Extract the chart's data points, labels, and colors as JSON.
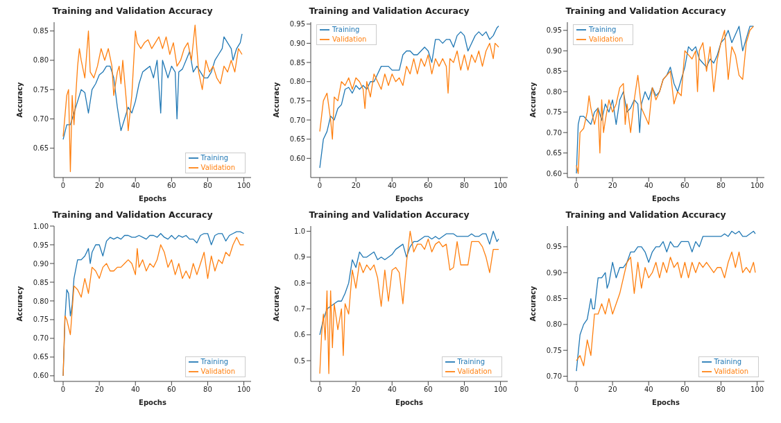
{
  "chart_data": [
    {
      "type": "line",
      "title": "Training and Validation Accuracy",
      "xlabel": "Epochs",
      "ylabel": "Accuracy",
      "legend": "bottom right",
      "xlim": [
        -5,
        104
      ],
      "xticks": [
        0,
        20,
        40,
        60,
        80,
        100
      ],
      "ylim": [
        0.6,
        0.865
      ],
      "yticks": [
        {
          "value": 0.65,
          "label": "0.65"
        },
        {
          "value": 0.7,
          "label": "0.70"
        },
        {
          "value": 0.75,
          "label": "0.75"
        },
        {
          "value": 0.8,
          "label": "0.80"
        },
        {
          "value": 0.85,
          "label": "0.85"
        }
      ],
      "series": [
        {
          "name": "Training",
          "color": "#1f77b4",
          "x": [
            0,
            2,
            4,
            6,
            8,
            10,
            12,
            14,
            16,
            18,
            20,
            22,
            24,
            26,
            28,
            30,
            32,
            34,
            36,
            38,
            40,
            42,
            44,
            46,
            48,
            50,
            52,
            54,
            55,
            58,
            60,
            62,
            63,
            64,
            66,
            68,
            70,
            72,
            74,
            76,
            78,
            80,
            82,
            84,
            86,
            88,
            89,
            91,
            93,
            94,
            96,
            98,
            99
          ],
          "values": [
            0.665,
            0.69,
            0.69,
            0.71,
            0.73,
            0.75,
            0.745,
            0.71,
            0.75,
            0.76,
            0.775,
            0.78,
            0.79,
            0.79,
            0.77,
            0.72,
            0.68,
            0.7,
            0.72,
            0.71,
            0.73,
            0.76,
            0.78,
            0.785,
            0.79,
            0.77,
            0.8,
            0.71,
            0.8,
            0.77,
            0.79,
            0.78,
            0.7,
            0.78,
            0.785,
            0.8,
            0.815,
            0.78,
            0.79,
            0.78,
            0.77,
            0.77,
            0.78,
            0.8,
            0.81,
            0.82,
            0.84,
            0.83,
            0.82,
            0.8,
            0.82,
            0.83,
            0.845
          ]
        },
        {
          "name": "Validation",
          "color": "#ff7f0e",
          "x": [
            0,
            2,
            3,
            4,
            5,
            6,
            8,
            9,
            10,
            12,
            14,
            15,
            17,
            19,
            21,
            23,
            25,
            27,
            28,
            30,
            31,
            32,
            33,
            35,
            36,
            38,
            40,
            41,
            43,
            45,
            47,
            49,
            51,
            53,
            55,
            57,
            59,
            61,
            63,
            65,
            67,
            69,
            71,
            73,
            75,
            77,
            79,
            81,
            83,
            85,
            87,
            89,
            91,
            93,
            95,
            97,
            99
          ],
          "values": [
            0.67,
            0.74,
            0.75,
            0.61,
            0.74,
            0.69,
            0.79,
            0.82,
            0.8,
            0.77,
            0.85,
            0.78,
            0.77,
            0.79,
            0.82,
            0.8,
            0.82,
            0.79,
            0.74,
            0.78,
            0.79,
            0.76,
            0.8,
            0.73,
            0.68,
            0.74,
            0.85,
            0.83,
            0.82,
            0.83,
            0.835,
            0.82,
            0.83,
            0.84,
            0.82,
            0.84,
            0.81,
            0.83,
            0.79,
            0.8,
            0.82,
            0.83,
            0.8,
            0.86,
            0.78,
            0.75,
            0.8,
            0.78,
            0.79,
            0.77,
            0.76,
            0.79,
            0.78,
            0.8,
            0.78,
            0.82,
            0.81
          ]
        }
      ]
    },
    {
      "type": "line",
      "title": "Training and Validation Accuracy",
      "xlabel": "Epochs",
      "ylabel": "Accuracy",
      "legend": "top left",
      "xlim": [
        -5,
        104
      ],
      "xticks": [
        0,
        20,
        40,
        60,
        80,
        100
      ],
      "ylim": [
        0.55,
        0.955
      ],
      "yticks": [
        {
          "value": 0.6,
          "label": "0.60"
        },
        {
          "value": 0.65,
          "label": "0.65"
        },
        {
          "value": 0.7,
          "label": "0.70"
        },
        {
          "value": 0.75,
          "label": "0.75"
        },
        {
          "value": 0.8,
          "label": "0.80"
        },
        {
          "value": 0.85,
          "label": "0.85"
        },
        {
          "value": 0.9,
          "label": "0.90"
        },
        {
          "value": 0.95,
          "label": "0.95"
        }
      ],
      "series": [
        {
          "name": "Training",
          "color": "#1f77b4",
          "x": [
            0,
            2,
            4,
            6,
            8,
            10,
            12,
            14,
            16,
            18,
            20,
            22,
            24,
            26,
            28,
            30,
            32,
            34,
            36,
            38,
            40,
            42,
            44,
            46,
            48,
            50,
            52,
            54,
            56,
            58,
            60,
            62,
            64,
            66,
            68,
            70,
            72,
            74,
            76,
            78,
            80,
            82,
            84,
            86,
            88,
            90,
            92,
            94,
            96,
            98,
            99
          ],
          "values": [
            0.575,
            0.65,
            0.67,
            0.71,
            0.7,
            0.73,
            0.74,
            0.78,
            0.785,
            0.77,
            0.79,
            0.78,
            0.79,
            0.78,
            0.8,
            0.8,
            0.82,
            0.84,
            0.84,
            0.84,
            0.83,
            0.83,
            0.83,
            0.87,
            0.88,
            0.88,
            0.87,
            0.87,
            0.88,
            0.89,
            0.88,
            0.85,
            0.91,
            0.91,
            0.9,
            0.91,
            0.91,
            0.89,
            0.92,
            0.93,
            0.92,
            0.88,
            0.9,
            0.92,
            0.93,
            0.92,
            0.93,
            0.91,
            0.92,
            0.94,
            0.945
          ]
        },
        {
          "name": "Validation",
          "color": "#ff7f0e",
          "x": [
            0,
            2,
            4,
            6,
            7,
            8,
            10,
            12,
            14,
            16,
            18,
            20,
            22,
            24,
            25,
            26,
            28,
            30,
            32,
            34,
            36,
            38,
            40,
            42,
            44,
            46,
            48,
            50,
            52,
            54,
            56,
            58,
            60,
            62,
            64,
            66,
            68,
            70,
            71,
            72,
            74,
            76,
            78,
            80,
            82,
            84,
            86,
            88,
            90,
            92,
            94,
            96,
            97,
            99
          ],
          "values": [
            0.67,
            0.75,
            0.77,
            0.7,
            0.65,
            0.76,
            0.75,
            0.8,
            0.79,
            0.81,
            0.78,
            0.81,
            0.8,
            0.78,
            0.73,
            0.8,
            0.76,
            0.82,
            0.8,
            0.78,
            0.82,
            0.79,
            0.82,
            0.8,
            0.81,
            0.79,
            0.84,
            0.82,
            0.86,
            0.82,
            0.86,
            0.84,
            0.87,
            0.82,
            0.86,
            0.84,
            0.86,
            0.84,
            0.77,
            0.86,
            0.85,
            0.88,
            0.83,
            0.87,
            0.83,
            0.87,
            0.85,
            0.88,
            0.84,
            0.88,
            0.9,
            0.86,
            0.9,
            0.89
          ]
        }
      ]
    },
    {
      "type": "line",
      "title": "Training and Validation Accuracy",
      "xlabel": "Epochs",
      "ylabel": "Accuracy",
      "legend": "top left",
      "xlim": [
        -5,
        104
      ],
      "xticks": [
        0,
        20,
        40,
        60,
        80,
        100
      ],
      "ylim": [
        0.59,
        0.97
      ],
      "yticks": [
        {
          "value": 0.6,
          "label": "0.60"
        },
        {
          "value": 0.65,
          "label": "0.65"
        },
        {
          "value": 0.7,
          "label": "0.70"
        },
        {
          "value": 0.75,
          "label": "0.75"
        },
        {
          "value": 0.8,
          "label": "0.80"
        },
        {
          "value": 0.85,
          "label": "0.85"
        },
        {
          "value": 0.9,
          "label": "0.90"
        },
        {
          "value": 0.95,
          "label": "0.95"
        }
      ],
      "series": [
        {
          "name": "Training",
          "color": "#1f77b4",
          "x": [
            0,
            1,
            2,
            4,
            6,
            8,
            10,
            12,
            14,
            16,
            18,
            20,
            22,
            24,
            26,
            28,
            30,
            32,
            34,
            35,
            36,
            38,
            40,
            42,
            44,
            46,
            48,
            50,
            52,
            54,
            56,
            58,
            60,
            62,
            64,
            66,
            68,
            70,
            72,
            74,
            76,
            78,
            80,
            82,
            84,
            86,
            88,
            90,
            92,
            94,
            96,
            98
          ],
          "values": [
            0.6,
            0.72,
            0.74,
            0.74,
            0.73,
            0.72,
            0.75,
            0.76,
            0.73,
            0.77,
            0.75,
            0.78,
            0.72,
            0.78,
            0.8,
            0.75,
            0.76,
            0.78,
            0.77,
            0.7,
            0.77,
            0.8,
            0.78,
            0.81,
            0.79,
            0.8,
            0.83,
            0.84,
            0.86,
            0.82,
            0.8,
            0.83,
            0.86,
            0.91,
            0.9,
            0.91,
            0.88,
            0.87,
            0.86,
            0.88,
            0.87,
            0.89,
            0.92,
            0.93,
            0.95,
            0.92,
            0.94,
            0.96,
            0.9,
            0.93,
            0.96,
            0.96
          ]
        },
        {
          "name": "Validation",
          "color": "#ff7f0e",
          "x": [
            0,
            1,
            2,
            4,
            6,
            7,
            8,
            10,
            12,
            13,
            14,
            15,
            16,
            18,
            20,
            22,
            24,
            26,
            27,
            28,
            30,
            32,
            34,
            36,
            38,
            40,
            42,
            44,
            46,
            48,
            50,
            52,
            54,
            56,
            58,
            60,
            62,
            64,
            66,
            67,
            68,
            70,
            72,
            74,
            76,
            78,
            80,
            82,
            84,
            86,
            88,
            90,
            92,
            94,
            96,
            98
          ],
          "values": [
            0.62,
            0.6,
            0.7,
            0.71,
            0.75,
            0.79,
            0.76,
            0.72,
            0.76,
            0.65,
            0.78,
            0.7,
            0.73,
            0.78,
            0.75,
            0.77,
            0.81,
            0.82,
            0.72,
            0.77,
            0.7,
            0.78,
            0.84,
            0.76,
            0.74,
            0.72,
            0.81,
            0.78,
            0.8,
            0.83,
            0.84,
            0.85,
            0.77,
            0.8,
            0.79,
            0.9,
            0.89,
            0.88,
            0.9,
            0.8,
            0.9,
            0.92,
            0.85,
            0.91,
            0.8,
            0.88,
            0.92,
            0.95,
            0.83,
            0.91,
            0.89,
            0.84,
            0.83,
            0.92,
            0.95,
            0.96
          ]
        }
      ]
    },
    {
      "type": "line",
      "title": "Training and Validation Accuracy",
      "xlabel": "Epochs",
      "ylabel": "Accuracy",
      "legend": "bottom right",
      "xlim": [
        -5,
        104
      ],
      "xticks": [
        0,
        20,
        40,
        60,
        80,
        100
      ],
      "ylim": [
        0.585,
        1.0
      ],
      "yticks": [
        {
          "value": 0.6,
          "label": "0.60"
        },
        {
          "value": 0.65,
          "label": "0.65"
        },
        {
          "value": 0.7,
          "label": "0.70"
        },
        {
          "value": 0.75,
          "label": "0.75"
        },
        {
          "value": 0.8,
          "label": "0.80"
        },
        {
          "value": 0.85,
          "label": "0.85"
        },
        {
          "value": 0.9,
          "label": "0.90"
        },
        {
          "value": 0.95,
          "label": "0.95"
        },
        {
          "value": 1.0,
          "label": "1.00"
        }
      ],
      "series": [
        {
          "name": "Training",
          "color": "#1f77b4",
          "x": [
            0,
            1,
            2,
            3,
            4,
            5,
            6,
            8,
            10,
            12,
            14,
            15,
            16,
            18,
            20,
            22,
            24,
            26,
            28,
            30,
            32,
            34,
            36,
            38,
            40,
            42,
            44,
            46,
            48,
            50,
            52,
            54,
            56,
            58,
            60,
            62,
            64,
            66,
            68,
            70,
            72,
            74,
            76,
            78,
            80,
            82,
            84,
            86,
            88,
            90,
            92,
            94,
            96,
            98,
            100
          ],
          "values": [
            0.6,
            0.75,
            0.83,
            0.82,
            0.76,
            0.79,
            0.86,
            0.91,
            0.91,
            0.92,
            0.94,
            0.9,
            0.93,
            0.95,
            0.95,
            0.92,
            0.96,
            0.97,
            0.965,
            0.97,
            0.965,
            0.975,
            0.975,
            0.97,
            0.97,
            0.975,
            0.97,
            0.965,
            0.975,
            0.975,
            0.97,
            0.98,
            0.97,
            0.965,
            0.975,
            0.965,
            0.975,
            0.97,
            0.975,
            0.965,
            0.965,
            0.955,
            0.975,
            0.98,
            0.98,
            0.95,
            0.975,
            0.98,
            0.98,
            0.96,
            0.975,
            0.98,
            0.985,
            0.985,
            0.98
          ]
        },
        {
          "name": "Validation",
          "color": "#ff7f0e",
          "x": [
            0,
            1,
            2,
            4,
            6,
            8,
            10,
            12,
            14,
            16,
            18,
            20,
            22,
            24,
            26,
            28,
            30,
            32,
            34,
            36,
            38,
            40,
            41,
            42,
            44,
            46,
            48,
            50,
            52,
            54,
            56,
            58,
            60,
            62,
            64,
            66,
            68,
            70,
            72,
            74,
            76,
            78,
            80,
            82,
            84,
            86,
            88,
            90,
            92,
            94,
            96,
            98,
            100
          ],
          "values": [
            0.6,
            0.76,
            0.75,
            0.71,
            0.84,
            0.83,
            0.81,
            0.86,
            0.82,
            0.89,
            0.88,
            0.86,
            0.89,
            0.9,
            0.88,
            0.88,
            0.89,
            0.89,
            0.9,
            0.91,
            0.9,
            0.87,
            0.94,
            0.89,
            0.91,
            0.88,
            0.9,
            0.89,
            0.91,
            0.95,
            0.93,
            0.89,
            0.91,
            0.87,
            0.9,
            0.86,
            0.88,
            0.86,
            0.9,
            0.87,
            0.9,
            0.93,
            0.86,
            0.92,
            0.88,
            0.91,
            0.9,
            0.93,
            0.92,
            0.95,
            0.97,
            0.95,
            0.95
          ]
        }
      ]
    },
    {
      "type": "line",
      "title": "Training and Validation Accuracy",
      "xlabel": "Epochs",
      "ylabel": "Accuracy",
      "legend": "bottom right",
      "xlim": [
        -5,
        104
      ],
      "xticks": [
        0,
        20,
        40,
        60,
        80,
        100
      ],
      "ylim": [
        0.42,
        1.02
      ],
      "yticks": [
        0.5,
        0.6,
        0.7,
        0.8,
        0.9,
        {
          "value": 1.0,
          "label": "1.0"
        }
      ],
      "series": [
        {
          "name": "Training",
          "color": "#1f77b4",
          "x": [
            0,
            2,
            4,
            6,
            8,
            10,
            12,
            14,
            16,
            18,
            20,
            22,
            24,
            26,
            28,
            30,
            32,
            34,
            36,
            38,
            40,
            42,
            44,
            46,
            48,
            50,
            52,
            54,
            56,
            58,
            60,
            62,
            64,
            66,
            68,
            70,
            72,
            74,
            76,
            78,
            80,
            82,
            84,
            86,
            88,
            90,
            92,
            94,
            96,
            98,
            99
          ],
          "values": [
            0.6,
            0.66,
            0.7,
            0.71,
            0.72,
            0.73,
            0.73,
            0.76,
            0.8,
            0.89,
            0.86,
            0.92,
            0.9,
            0.9,
            0.91,
            0.92,
            0.89,
            0.9,
            0.89,
            0.9,
            0.91,
            0.93,
            0.94,
            0.95,
            0.9,
            0.94,
            0.96,
            0.96,
            0.97,
            0.98,
            0.98,
            0.97,
            0.98,
            0.97,
            0.98,
            0.99,
            0.99,
            0.99,
            0.98,
            0.98,
            0.98,
            0.98,
            0.99,
            0.98,
            0.98,
            0.99,
            0.99,
            0.95,
            1.0,
            0.96,
            0.97
          ]
        },
        {
          "name": "Validation",
          "color": "#ff7f0e",
          "x": [
            0,
            1,
            2,
            3,
            4,
            5,
            6,
            7,
            8,
            10,
            12,
            13,
            14,
            16,
            18,
            20,
            22,
            24,
            26,
            28,
            30,
            32,
            34,
            36,
            38,
            40,
            42,
            44,
            46,
            48,
            50,
            52,
            54,
            56,
            58,
            60,
            62,
            64,
            66,
            68,
            70,
            72,
            74,
            76,
            78,
            80,
            82,
            84,
            86,
            88,
            90,
            92,
            94,
            96,
            98,
            99
          ],
          "values": [
            0.45,
            0.6,
            0.68,
            0.58,
            0.77,
            0.45,
            0.77,
            0.55,
            0.72,
            0.62,
            0.7,
            0.52,
            0.72,
            0.68,
            0.85,
            0.78,
            0.88,
            0.84,
            0.87,
            0.85,
            0.87,
            0.82,
            0.71,
            0.85,
            0.73,
            0.85,
            0.86,
            0.84,
            0.72,
            0.88,
            1.0,
            0.92,
            0.95,
            0.95,
            0.93,
            0.97,
            0.92,
            0.95,
            0.96,
            0.94,
            0.95,
            0.85,
            0.86,
            0.96,
            0.87,
            0.87,
            0.87,
            0.96,
            0.96,
            0.96,
            0.94,
            0.9,
            0.84,
            0.93,
            0.93,
            0.93
          ]
        }
      ]
    },
    {
      "type": "line",
      "title": "Training and Validation Accuracy",
      "xlabel": "Epochs",
      "ylabel": "Accuracy",
      "legend": "bottom right",
      "xlim": [
        -5,
        104
      ],
      "xticks": [
        0,
        20,
        40,
        60,
        80,
        100
      ],
      "ylim": [
        0.69,
        0.99
      ],
      "yticks": [
        {
          "value": 0.7,
          "label": "0.70"
        },
        {
          "value": 0.75,
          "label": "0.75"
        },
        {
          "value": 0.8,
          "label": "0.80"
        },
        {
          "value": 0.85,
          "label": "0.85"
        },
        {
          "value": 0.9,
          "label": "0.90"
        },
        {
          "value": 0.95,
          "label": "0.95"
        }
      ],
      "series": [
        {
          "name": "Training",
          "color": "#1f77b4",
          "x": [
            0,
            2,
            4,
            6,
            8,
            9,
            10,
            12,
            14,
            16,
            17,
            18,
            20,
            22,
            24,
            26,
            28,
            30,
            32,
            34,
            36,
            38,
            40,
            42,
            44,
            46,
            48,
            50,
            52,
            54,
            56,
            58,
            60,
            62,
            64,
            66,
            68,
            70,
            72,
            74,
            76,
            78,
            80,
            82,
            84,
            86,
            88,
            90,
            92,
            94,
            96,
            98,
            99
          ],
          "values": [
            0.71,
            0.78,
            0.8,
            0.81,
            0.85,
            0.83,
            0.83,
            0.89,
            0.89,
            0.9,
            0.87,
            0.88,
            0.92,
            0.89,
            0.91,
            0.91,
            0.92,
            0.94,
            0.94,
            0.95,
            0.95,
            0.94,
            0.92,
            0.94,
            0.95,
            0.95,
            0.96,
            0.94,
            0.96,
            0.95,
            0.95,
            0.96,
            0.96,
            0.96,
            0.94,
            0.96,
            0.95,
            0.97,
            0.97,
            0.97,
            0.97,
            0.97,
            0.97,
            0.975,
            0.97,
            0.98,
            0.975,
            0.98,
            0.97,
            0.97,
            0.975,
            0.98,
            0.975
          ]
        },
        {
          "name": "Validation",
          "color": "#ff7f0e",
          "x": [
            0,
            2,
            4,
            6,
            8,
            10,
            12,
            14,
            16,
            18,
            20,
            22,
            24,
            26,
            28,
            30,
            32,
            34,
            36,
            38,
            40,
            42,
            44,
            46,
            48,
            50,
            52,
            54,
            56,
            58,
            60,
            62,
            64,
            66,
            68,
            70,
            72,
            74,
            76,
            78,
            80,
            82,
            84,
            86,
            88,
            90,
            92,
            94,
            96,
            98,
            99
          ],
          "values": [
            0.73,
            0.74,
            0.72,
            0.77,
            0.74,
            0.82,
            0.82,
            0.84,
            0.82,
            0.85,
            0.82,
            0.84,
            0.86,
            0.89,
            0.92,
            0.93,
            0.86,
            0.92,
            0.87,
            0.91,
            0.89,
            0.9,
            0.92,
            0.89,
            0.92,
            0.9,
            0.93,
            0.91,
            0.92,
            0.89,
            0.92,
            0.89,
            0.92,
            0.9,
            0.92,
            0.91,
            0.92,
            0.91,
            0.9,
            0.91,
            0.91,
            0.89,
            0.92,
            0.94,
            0.91,
            0.94,
            0.9,
            0.91,
            0.9,
            0.92,
            0.9
          ]
        }
      ]
    }
  ]
}
